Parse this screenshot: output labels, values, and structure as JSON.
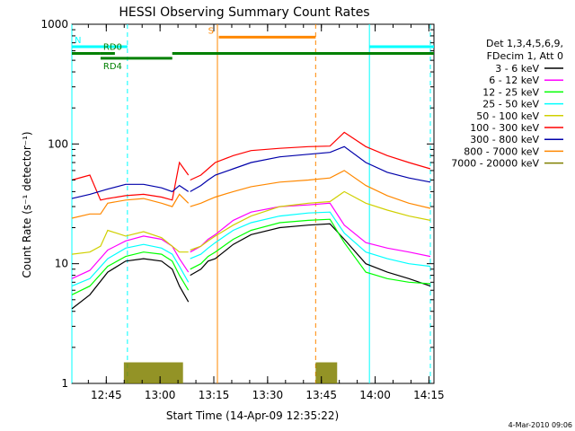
{
  "chart_data": {
    "type": "line",
    "title": "HESSI Observing Summary Count Rates",
    "xlabel": "Start Time (14-Apr-09 12:35:22)",
    "ylabel": "Count Rate (s⁻¹ detector⁻¹)",
    "x_unit": "minutes since 12:35:22",
    "xlim": [
      0,
      101
    ],
    "ylim": [
      1,
      1000
    ],
    "yscale": "log",
    "grid": false,
    "legend_position": "right",
    "x_ticks": [
      {
        "label": "12:45",
        "value": 9.6
      },
      {
        "label": "13:00",
        "value": 24.6
      },
      {
        "label": "13:15",
        "value": 39.6
      },
      {
        "label": "13:30",
        "value": 54.6
      },
      {
        "label": "13:45",
        "value": 69.6
      },
      {
        "label": "14:00",
        "value": 84.6
      },
      {
        "label": "14:15",
        "value": 99.6
      }
    ],
    "y_ticks": [
      {
        "label": "1",
        "value": 1
      },
      {
        "label": "10",
        "value": 10
      },
      {
        "label": "100",
        "value": 100
      },
      {
        "label": "1000",
        "value": 1000
      }
    ],
    "legend_header": [
      "Det 1,3,4,5,6,9,",
      "FDecim 1, Att 0"
    ],
    "series": [
      {
        "name": "3 - 6 keV",
        "color": "#000000",
        "segments": [
          {
            "x": [
              0,
              5,
              10,
              15,
              20,
              25,
              28,
              30,
              32.5
            ],
            "y": [
              4.2,
              5.5,
              8.5,
              10.5,
              11,
              10.5,
              9,
              6.5,
              4.8
            ]
          },
          {
            "x": [
              33,
              36,
              38,
              40,
              45,
              50,
              58,
              66,
              72,
              76,
              82,
              88,
              94,
              100
            ],
            "y": [
              8,
              9,
              10.5,
              11,
              14.5,
              17.5,
              20,
              21,
              21.5,
              16,
              10,
              8.5,
              7.5,
              6.5
            ]
          }
        ]
      },
      {
        "name": "6 - 12 keV",
        "color": "#ff00ff",
        "segments": [
          {
            "x": [
              0,
              5,
              10,
              15,
              20,
              25,
              28,
              30,
              32.5
            ],
            "y": [
              7.5,
              8.8,
              13,
              15.5,
              17,
              16,
              14,
              11,
              8.5
            ]
          },
          {
            "x": [
              33,
              36,
              38,
              40,
              45,
              50,
              58,
              66,
              72,
              76,
              82,
              88,
              94,
              100
            ],
            "y": [
              12.5,
              14,
              16,
              17.5,
              23,
              27,
              30,
              31,
              32,
              21,
              15,
              13.5,
              12.5,
              11.5
            ]
          }
        ]
      },
      {
        "name": "12 - 25 keV",
        "color": "#00ff00",
        "segments": [
          {
            "x": [
              0,
              5,
              10,
              15,
              20,
              25,
              28,
              30,
              32.5
            ],
            "y": [
              5.5,
              6.5,
              9.5,
              11.5,
              12.5,
              12,
              10.5,
              8,
              6
            ]
          },
          {
            "x": [
              33,
              36,
              38,
              40,
              45,
              50,
              58,
              66,
              72,
              76,
              82,
              88,
              94,
              100
            ],
            "y": [
              9,
              10,
              11.5,
              12.5,
              16,
              19,
              22,
              23,
              23.5,
              15,
              8.5,
              7.5,
              7,
              6.8
            ]
          }
        ]
      },
      {
        "name": "25 - 50 keV",
        "color": "#00ffff",
        "segments": [
          {
            "x": [
              0,
              5,
              10,
              15,
              20,
              25,
              28,
              30,
              32.5
            ],
            "y": [
              6.5,
              7.5,
              11,
              13.5,
              14.5,
              13.5,
              12,
              9.5,
              7
            ]
          },
          {
            "x": [
              33,
              36,
              38,
              40,
              45,
              50,
              58,
              66,
              72,
              76,
              82,
              88,
              94,
              100
            ],
            "y": [
              11,
              12,
              13.5,
              15,
              19,
              22,
              25,
              26.5,
              27,
              18,
              12.5,
              11,
              10,
              9.5
            ]
          }
        ]
      },
      {
        "name": "50 - 100 keV",
        "color": "#d0d000",
        "segments": [
          {
            "x": [
              0,
              5,
              8,
              10,
              15,
              20,
              25,
              28,
              30,
              32.5
            ],
            "y": [
              12,
              12.5,
              14,
              19,
              17,
              18.5,
              16.5,
              14,
              12.5,
              12.5
            ]
          },
          {
            "x": [
              33,
              36,
              38,
              40,
              45,
              50,
              58,
              66,
              72,
              76,
              82,
              88,
              94,
              100
            ],
            "y": [
              13,
              14,
              15.5,
              17,
              21,
              25,
              30,
              32,
              33,
              40,
              32,
              28,
              25,
              23
            ]
          }
        ]
      },
      {
        "name": "100 - 300 keV",
        "color": "#ff0000",
        "segments": [
          {
            "x": [
              0,
              5,
              8,
              10,
              15,
              20,
              25,
              28,
              30,
              32.5
            ],
            "y": [
              50,
              55,
              34,
              35,
              37,
              38,
              36,
              34,
              70,
              55
            ]
          },
          {
            "x": [
              33,
              36,
              38,
              40,
              45,
              50,
              58,
              66,
              72,
              76,
              82,
              88,
              94,
              100
            ],
            "y": [
              50,
              55,
              62,
              70,
              80,
              88,
              92,
              95,
              96,
              125,
              95,
              80,
              70,
              62
            ]
          }
        ]
      },
      {
        "name": "300 - 800 keV",
        "color": "#0000aa",
        "segments": [
          {
            "x": [
              0,
              5,
              10,
              15,
              20,
              25,
              28,
              30,
              32.5
            ],
            "y": [
              35,
              38,
              42,
              46,
              46,
              43,
              40,
              45,
              40
            ]
          },
          {
            "x": [
              33,
              36,
              38,
              40,
              45,
              50,
              58,
              66,
              72,
              76,
              82,
              88,
              94,
              100
            ],
            "y": [
              40,
              45,
              50,
              55,
              62,
              70,
              78,
              82,
              85,
              95,
              70,
              58,
              52,
              48
            ]
          }
        ]
      },
      {
        "name": "800 - 7000 keV",
        "color": "#ff8800",
        "segments": [
          {
            "x": [
              0,
              5,
              8,
              10,
              15,
              20,
              25,
              28,
              30,
              32.5
            ],
            "y": [
              24,
              26,
              26,
              32,
              34,
              35,
              32,
              30,
              38,
              32
            ]
          },
          {
            "x": [
              33,
              36,
              38,
              40,
              45,
              50,
              58,
              66,
              72,
              76,
              82,
              88,
              94,
              100
            ],
            "y": [
              30,
              32,
              34,
              36,
              40,
              44,
              48,
              50,
              52,
              60,
              45,
              37,
              32,
              29
            ]
          }
        ]
      },
      {
        "name": "7000 - 20000 keV",
        "color": "#808000",
        "segments": [
          {
            "x": [
              14.5,
              31
            ],
            "y": [
              1,
              1
            ]
          },
          {
            "x": [
              68,
              74
            ],
            "y": [
              1,
              1
            ]
          }
        ]
      }
    ],
    "annotations": {
      "bars": [
        {
          "label": "N",
          "color": "#00ffff",
          "x": [
            0,
            15.5
          ],
          "y": 650
        },
        {
          "label": "",
          "color": "#00ffff",
          "x": [
            83,
            101
          ],
          "y": 650
        },
        {
          "label": "S",
          "color": "#ff8800",
          "x": [
            41,
            68
          ],
          "y": 780
        },
        {
          "label": "RD0",
          "color": "#008000",
          "x": [
            8,
            12
          ],
          "y": 570
        },
        {
          "label": "",
          "color": "#008000",
          "x": [
            0,
            8
          ],
          "y": 570
        },
        {
          "label": "RD4",
          "color": "#008000",
          "x": [
            8,
            28
          ],
          "y": 520
        },
        {
          "label": "",
          "color": "#008000",
          "x": [
            28,
            101
          ],
          "y": 570
        }
      ],
      "vlines_solid": [
        {
          "x": 0,
          "color": "#00ffff"
        },
        {
          "x": 40.6,
          "color": "#ff8800"
        },
        {
          "x": 83,
          "color": "#00ffff"
        }
      ],
      "vlines_dashed": [
        {
          "x": 15.5,
          "color": "#00ffff"
        },
        {
          "x": 68,
          "color": "#ff8800"
        },
        {
          "x": 100,
          "color": "#00ffff"
        }
      ]
    },
    "footer_stamp": "4-Mar-2010 09:06"
  }
}
